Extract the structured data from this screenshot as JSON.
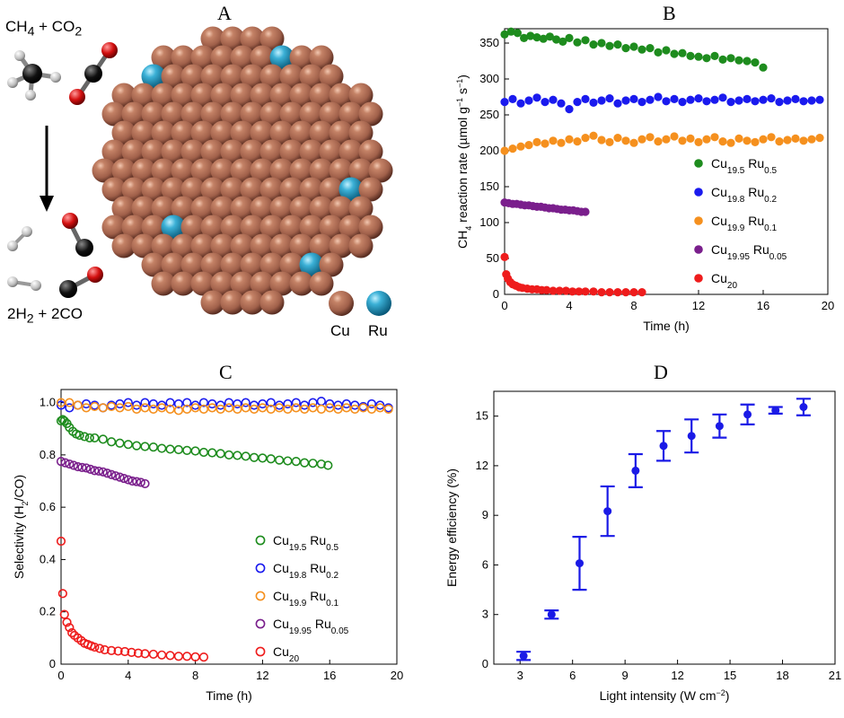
{
  "panel_letters": {
    "a": "A",
    "b": "B",
    "c": "C",
    "d": "D"
  },
  "colors": {
    "green": "#1e8c1e",
    "blue": "#1a1aee",
    "orange": "#f5901e",
    "purple": "#7a1f8c",
    "red": "#ee1c1c",
    "copper": "#a0604a",
    "ruthenium": "#1e90b4",
    "panel_d": "#1a1ae6"
  },
  "scheme": {
    "reactants_html": "CH<sub>4</sub> + CO<sub>2</sub>",
    "products_html": "2H<sub>2</sub> + 2CO",
    "legend": [
      {
        "label": "Cu",
        "color": "#a0604a"
      },
      {
        "label": "Ru",
        "color": "#1e90b4"
      }
    ]
  },
  "chart_data": [
    {
      "id": "B",
      "type": "scatter",
      "xlabel": "Time (h)",
      "ylabel_html": "CH<tspan baseline-shift=\"sub\" font-size=\"9\">4</tspan> reaction rate (µmol g<tspan baseline-shift=\"super\" font-size=\"9\">−1</tspan> s<tspan baseline-shift=\"super\" font-size=\"9\">−1</tspan>)",
      "xlim": [
        0,
        20
      ],
      "ylim": [
        0,
        370
      ],
      "xticks": [
        0,
        4,
        8,
        12,
        16,
        20
      ],
      "yticks": [
        0,
        50,
        100,
        150,
        200,
        250,
        300,
        350
      ],
      "marker": "filled",
      "legend_position": "right-middle",
      "series": [
        {
          "name_html": "Cu<sub>19.5</sub> Ru<sub>0.5</sub>",
          "color": "#1e8c1e",
          "x": [
            0,
            0.4,
            0.8,
            1.2,
            1.6,
            2,
            2.4,
            2.8,
            3.2,
            3.6,
            4,
            4.5,
            5,
            5.5,
            6,
            6.5,
            7,
            7.5,
            8,
            8.5,
            9,
            9.5,
            10,
            10.5,
            11,
            11.5,
            12,
            12.5,
            13,
            13.5,
            14,
            14.5,
            15,
            15.5,
            16
          ],
          "y": [
            362,
            366,
            364,
            357,
            360,
            358,
            356,
            359,
            355,
            352,
            357,
            351,
            354,
            348,
            350,
            346,
            348,
            343,
            345,
            341,
            343,
            337,
            340,
            335,
            336,
            332,
            331,
            329,
            332,
            327,
            329,
            326,
            325,
            323,
            316
          ]
        },
        {
          "name_html": "Cu<sub>19.8</sub> Ru<sub>0.2</sub>",
          "color": "#1a1aee",
          "x": [
            0,
            0.5,
            1,
            1.5,
            2,
            2.5,
            3,
            3.5,
            4,
            4.5,
            5,
            5.5,
            6,
            6.5,
            7,
            7.5,
            8,
            8.5,
            9,
            9.5,
            10,
            10.5,
            11,
            11.5,
            12,
            12.5,
            13,
            13.5,
            14,
            14.5,
            15,
            15.5,
            16,
            16.5,
            17,
            17.5,
            18,
            18.5,
            19,
            19.5
          ],
          "y": [
            268,
            272,
            266,
            270,
            274,
            268,
            271,
            266,
            258,
            268,
            272,
            267,
            270,
            273,
            266,
            270,
            272,
            268,
            271,
            275,
            269,
            272,
            268,
            271,
            273,
            269,
            271,
            274,
            268,
            270,
            272,
            269,
            271,
            273,
            268,
            270,
            272,
            269,
            270,
            271
          ]
        },
        {
          "name_html": "Cu<sub>19.9</sub> Ru<sub>0.1</sub>",
          "color": "#f5901e",
          "x": [
            0,
            0.5,
            1,
            1.5,
            2,
            2.5,
            3,
            3.5,
            4,
            4.5,
            5,
            5.5,
            6,
            6.5,
            7,
            7.5,
            8,
            8.5,
            9,
            9.5,
            10,
            10.5,
            11,
            11.5,
            12,
            12.5,
            13,
            13.5,
            14,
            14.5,
            15,
            15.5,
            16,
            16.5,
            17,
            17.5,
            18,
            18.5,
            19,
            19.5
          ],
          "y": [
            200,
            203,
            206,
            208,
            212,
            210,
            214,
            211,
            216,
            213,
            218,
            221,
            215,
            212,
            218,
            214,
            211,
            216,
            219,
            213,
            216,
            220,
            214,
            217,
            212,
            216,
            219,
            213,
            211,
            217,
            214,
            212,
            216,
            219,
            213,
            215,
            217,
            214,
            216,
            218
          ]
        },
        {
          "name_html": "Cu<sub>19.95</sub> Ru<sub>0.05</sub>",
          "color": "#7a1f8c",
          "x": [
            0,
            0.25,
            0.5,
            0.75,
            1,
            1.25,
            1.5,
            1.75,
            2,
            2.25,
            2.5,
            2.75,
            3,
            3.25,
            3.5,
            3.75,
            4,
            4.25,
            4.5,
            4.75,
            5
          ],
          "y": [
            128,
            127,
            126,
            126,
            125,
            124,
            124,
            123,
            122,
            122,
            121,
            120,
            120,
            119,
            118,
            118,
            117,
            117,
            116,
            115,
            115
          ]
        },
        {
          "name_html": "Cu<sub>20</sub>",
          "color": "#ee1c1c",
          "x": [
            0,
            0.1,
            0.2,
            0.35,
            0.5,
            0.7,
            0.9,
            1.1,
            1.4,
            1.7,
            2,
            2.3,
            2.6,
            3,
            3.4,
            3.8,
            4.2,
            4.6,
            5,
            5.5,
            6,
            6.5,
            7,
            7.5,
            8,
            8.5
          ],
          "y": [
            52,
            28,
            22,
            17,
            14,
            12,
            10,
            9,
            8,
            7,
            7,
            6,
            6,
            5,
            5,
            5,
            4,
            4,
            4,
            4,
            3,
            3,
            3,
            3,
            3,
            3
          ]
        }
      ]
    },
    {
      "id": "C",
      "type": "scatter",
      "xlabel": "Time (h)",
      "ylabel_html": "Selectivity (H<tspan baseline-shift=\"sub\" font-size=\"9\">2</tspan>/CO)",
      "xlim": [
        0,
        20
      ],
      "ylim": [
        0,
        1.05
      ],
      "xticks": [
        0,
        4,
        8,
        12,
        16,
        20
      ],
      "yticks": [
        0,
        0.2,
        0.4,
        0.6,
        0.8,
        1.0
      ],
      "ytick_labels": [
        "0",
        "0.2",
        "0.4",
        "0.6",
        "0.8",
        "1.0"
      ],
      "marker": "open",
      "legend_position": "right-bottom",
      "series": [
        {
          "name_html": "Cu<sub>19.5</sub> Ru<sub>0.5</sub>",
          "color": "#1e8c1e",
          "x": [
            0,
            0.1,
            0.2,
            0.35,
            0.5,
            0.7,
            0.9,
            1.1,
            1.4,
            1.7,
            2,
            2.5,
            3,
            3.5,
            4,
            4.5,
            5,
            5.5,
            6,
            6.5,
            7,
            7.5,
            8,
            8.5,
            9,
            9.5,
            10,
            10.5,
            11,
            11.5,
            12,
            12.5,
            13,
            13.5,
            14,
            14.5,
            15,
            15.5,
            15.9
          ],
          "y": [
            0.93,
            0.935,
            0.93,
            0.92,
            0.905,
            0.89,
            0.88,
            0.875,
            0.87,
            0.865,
            0.865,
            0.86,
            0.85,
            0.845,
            0.84,
            0.835,
            0.832,
            0.83,
            0.825,
            0.822,
            0.82,
            0.817,
            0.815,
            0.81,
            0.808,
            0.805,
            0.8,
            0.798,
            0.795,
            0.79,
            0.788,
            0.785,
            0.78,
            0.777,
            0.775,
            0.77,
            0.768,
            0.765,
            0.76
          ]
        },
        {
          "name_html": "Cu<sub>19.8</sub> Ru<sub>0.2</sub>",
          "color": "#1a1aee",
          "x": [
            0,
            0.5,
            1,
            1.5,
            2,
            2.5,
            3,
            3.5,
            4,
            4.5,
            5,
            5.5,
            6,
            6.5,
            7,
            7.5,
            8,
            8.5,
            9,
            9.5,
            10,
            10.5,
            11,
            11.5,
            12,
            12.5,
            13,
            13.5,
            14,
            14.5,
            15,
            15.5,
            16,
            16.5,
            17,
            17.5,
            18,
            18.5,
            19,
            19.5
          ],
          "y": [
            0.99,
            0.98,
            0.99,
            0.995,
            0.99,
            0.98,
            0.99,
            0.995,
            1.0,
            0.99,
            1.0,
            0.995,
            0.99,
            1.0,
            0.995,
            1.0,
            0.99,
            1.0,
            0.995,
            0.99,
            1.0,
            0.995,
            1.0,
            0.99,
            0.995,
            1.0,
            0.99,
            0.995,
            1.0,
            0.99,
            1.0,
            1.005,
            0.995,
            0.99,
            0.995,
            0.99,
            0.985,
            0.995,
            0.99,
            0.98
          ]
        },
        {
          "name_html": "Cu<sub>19.9</sub> Ru<sub>0.1</sub>",
          "color": "#f5901e",
          "x": [
            0,
            0.5,
            1,
            1.5,
            2,
            2.5,
            3,
            3.5,
            4,
            4.5,
            5,
            5.5,
            6,
            6.5,
            7,
            7.5,
            8,
            8.5,
            9,
            9.5,
            10,
            10.5,
            11,
            11.5,
            12,
            12.5,
            13,
            13.5,
            14,
            14.5,
            15,
            15.5,
            16,
            16.5,
            17,
            17.5,
            18,
            18.5,
            19,
            19.5
          ],
          "y": [
            1.0,
            1.0,
            0.99,
            0.98,
            0.985,
            0.98,
            0.985,
            0.98,
            0.985,
            0.975,
            0.98,
            0.975,
            0.98,
            0.975,
            0.97,
            0.975,
            0.98,
            0.975,
            0.98,
            0.975,
            0.98,
            0.975,
            0.98,
            0.975,
            0.98,
            0.975,
            0.98,
            0.975,
            0.98,
            0.975,
            0.98,
            0.975,
            0.98,
            0.975,
            0.98,
            0.975,
            0.98,
            0.975,
            0.98,
            0.975
          ]
        },
        {
          "name_html": "Cu<sub>19.95</sub> Ru<sub>0.05</sub>",
          "color": "#7a1f8c",
          "x": [
            0,
            0.25,
            0.5,
            0.75,
            1,
            1.25,
            1.5,
            1.75,
            2,
            2.25,
            2.5,
            2.75,
            3,
            3.25,
            3.5,
            3.75,
            4,
            4.25,
            4.5,
            4.75,
            5
          ],
          "y": [
            0.775,
            0.77,
            0.765,
            0.76,
            0.755,
            0.752,
            0.75,
            0.745,
            0.74,
            0.738,
            0.735,
            0.73,
            0.725,
            0.72,
            0.715,
            0.71,
            0.705,
            0.7,
            0.698,
            0.695,
            0.69
          ]
        },
        {
          "name_html": "Cu<sub>20</sub>",
          "color": "#ee1c1c",
          "x": [
            0,
            0.1,
            0.2,
            0.35,
            0.5,
            0.65,
            0.8,
            1,
            1.2,
            1.4,
            1.6,
            1.8,
            2,
            2.3,
            2.6,
            3,
            3.4,
            3.8,
            4.2,
            4.6,
            5,
            5.5,
            6,
            6.5,
            7,
            7.5,
            8,
            8.5
          ],
          "y": [
            0.47,
            0.27,
            0.19,
            0.16,
            0.14,
            0.12,
            0.11,
            0.1,
            0.09,
            0.08,
            0.075,
            0.07,
            0.065,
            0.06,
            0.055,
            0.052,
            0.05,
            0.048,
            0.045,
            0.042,
            0.04,
            0.038,
            0.035,
            0.033,
            0.03,
            0.03,
            0.028,
            0.027
          ]
        }
      ]
    },
    {
      "id": "D",
      "type": "scatter",
      "xlabel_html": "Light intensity (W cm<tspan baseline-shift=\"super\" font-size=\"9\">−2</tspan>)",
      "ylabel": "Energy efficiency (%)",
      "xlim": [
        1.5,
        21
      ],
      "ylim": [
        0,
        16.5
      ],
      "xticks": [
        3,
        6,
        9,
        12,
        15,
        18,
        21
      ],
      "yticks": [
        0,
        3,
        6,
        9,
        12,
        15
      ],
      "marker": "filled-errorbar",
      "color": "#1a1ae6",
      "points": [
        {
          "x": 3.2,
          "y": 0.5,
          "err": 0.25
        },
        {
          "x": 4.8,
          "y": 3.0,
          "err": 0.25
        },
        {
          "x": 6.4,
          "y": 6.1,
          "err": 1.6
        },
        {
          "x": 8.0,
          "y": 9.25,
          "err": 1.5
        },
        {
          "x": 9.6,
          "y": 11.7,
          "err": 1.0
        },
        {
          "x": 11.2,
          "y": 13.2,
          "err": 0.9
        },
        {
          "x": 12.8,
          "y": 13.8,
          "err": 1.0
        },
        {
          "x": 14.4,
          "y": 14.4,
          "err": 0.7
        },
        {
          "x": 16.0,
          "y": 15.1,
          "err": 0.6
        },
        {
          "x": 17.6,
          "y": 15.35,
          "err": 0.2
        },
        {
          "x": 19.2,
          "y": 15.55,
          "err": 0.5
        }
      ]
    }
  ]
}
